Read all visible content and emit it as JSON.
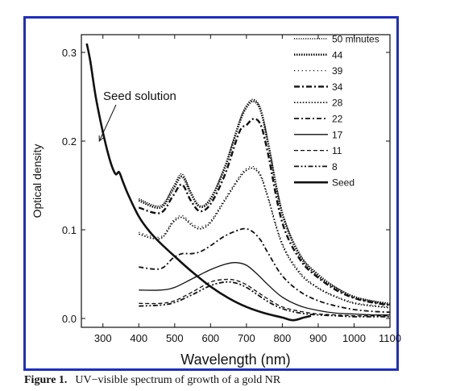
{
  "caption": {
    "label": "Figure 1.",
    "text": "UV−visible spectrum of growth of a gold NR"
  },
  "chart_data": {
    "type": "line",
    "xlabel": "Wavelength (nm)",
    "ylabel": "Optical density",
    "xlim": [
      240,
      1100
    ],
    "ylim": [
      -0.01,
      0.32
    ],
    "xticks": [
      300,
      400,
      500,
      600,
      700,
      800,
      900,
      1000,
      1100
    ],
    "yticks": [
      0.0,
      0.1,
      0.2,
      0.3
    ],
    "ytick_labels": [
      "0.0",
      "0.1",
      "0.2",
      "0.3"
    ],
    "legend_position": "top-right",
    "annotation": {
      "text": "Seed solution",
      "arrow_to": [
        290,
        0.2
      ]
    },
    "series": [
      {
        "name": "50 minutes",
        "style": "dot-fine",
        "x": [
          400,
          460,
          495,
          520,
          545,
          570,
          600,
          640,
          680,
          700,
          720,
          740,
          760,
          800,
          850,
          900,
          950,
          1000,
          1050,
          1100
        ],
        "y": [
          0.135,
          0.127,
          0.148,
          0.163,
          0.143,
          0.127,
          0.136,
          0.172,
          0.222,
          0.24,
          0.247,
          0.236,
          0.2,
          0.12,
          0.072,
          0.05,
          0.035,
          0.025,
          0.02,
          0.017
        ]
      },
      {
        "name": "44",
        "style": "dot-bold",
        "x": [
          400,
          460,
          495,
          520,
          545,
          570,
          600,
          640,
          680,
          700,
          720,
          740,
          760,
          800,
          850,
          900,
          950,
          1000,
          1050,
          1100
        ],
        "y": [
          0.133,
          0.125,
          0.145,
          0.16,
          0.141,
          0.126,
          0.134,
          0.17,
          0.22,
          0.238,
          0.245,
          0.234,
          0.198,
          0.118,
          0.07,
          0.048,
          0.034,
          0.024,
          0.019,
          0.016
        ]
      },
      {
        "name": "39",
        "style": "dot-sparse",
        "x": [
          400,
          460,
          495,
          520,
          545,
          570,
          600,
          640,
          680,
          700,
          720,
          740,
          760,
          800,
          850,
          900,
          950,
          1000,
          1050,
          1100
        ],
        "y": [
          0.097,
          0.092,
          0.11,
          0.116,
          0.108,
          0.103,
          0.11,
          0.135,
          0.16,
          0.169,
          0.171,
          0.162,
          0.138,
          0.085,
          0.052,
          0.035,
          0.025,
          0.018,
          0.015,
          0.013
        ]
      },
      {
        "name": "34",
        "style": "dash-dot-bold",
        "x": [
          400,
          460,
          495,
          520,
          545,
          570,
          600,
          640,
          680,
          700,
          720,
          740,
          760,
          800,
          850,
          900,
          950,
          1000,
          1050,
          1100
        ],
        "y": [
          0.125,
          0.119,
          0.138,
          0.151,
          0.133,
          0.121,
          0.129,
          0.162,
          0.21,
          0.218,
          0.225,
          0.218,
          0.186,
          0.108,
          0.066,
          0.046,
          0.032,
          0.023,
          0.018,
          0.015
        ]
      },
      {
        "name": "28",
        "style": "dot-medium",
        "x": [
          400,
          460,
          495,
          520,
          545,
          570,
          600,
          640,
          680,
          700,
          720,
          740,
          760,
          800,
          850,
          900,
          950,
          1000,
          1050,
          1100
        ],
        "y": [
          0.095,
          0.09,
          0.108,
          0.114,
          0.106,
          0.101,
          0.108,
          0.133,
          0.158,
          0.167,
          0.169,
          0.16,
          0.136,
          0.083,
          0.05,
          0.034,
          0.024,
          0.017,
          0.014,
          0.012
        ]
      },
      {
        "name": "22",
        "style": "dash-dot",
        "x": [
          400,
          460,
          495,
          520,
          545,
          570,
          600,
          640,
          680,
          700,
          720,
          740,
          760,
          800,
          850,
          900,
          950,
          1000,
          1050,
          1100
        ],
        "y": [
          0.058,
          0.056,
          0.068,
          0.073,
          0.073,
          0.075,
          0.082,
          0.093,
          0.1,
          0.101,
          0.097,
          0.088,
          0.074,
          0.048,
          0.03,
          0.02,
          0.014,
          0.01,
          0.008,
          0.007
        ]
      },
      {
        "name": "17",
        "style": "solid",
        "x": [
          400,
          460,
          500,
          550,
          600,
          640,
          670,
          700,
          730,
          760,
          800,
          850,
          900,
          950,
          1000,
          1050,
          1100
        ],
        "y": [
          0.032,
          0.032,
          0.035,
          0.045,
          0.055,
          0.061,
          0.063,
          0.06,
          0.05,
          0.038,
          0.024,
          0.014,
          0.009,
          0.006,
          0.005,
          0.004,
          0.004
        ]
      },
      {
        "name": "11",
        "style": "dash",
        "x": [
          400,
          460,
          500,
          550,
          600,
          640,
          670,
          700,
          730,
          760,
          800,
          850,
          900,
          950,
          1000,
          1050,
          1100
        ],
        "y": [
          0.017,
          0.017,
          0.02,
          0.03,
          0.041,
          0.044,
          0.043,
          0.038,
          0.03,
          0.022,
          0.013,
          0.008,
          0.005,
          0.004,
          0.003,
          0.003,
          0.003
        ]
      },
      {
        "name": "8",
        "style": "dash-dot-dot",
        "x": [
          400,
          460,
          500,
          550,
          600,
          640,
          670,
          700,
          730,
          760,
          800,
          850,
          900,
          950,
          1000,
          1050,
          1100
        ],
        "y": [
          0.014,
          0.015,
          0.018,
          0.027,
          0.037,
          0.041,
          0.04,
          0.035,
          0.027,
          0.019,
          0.011,
          0.006,
          0.004,
          0.003,
          0.002,
          0.002,
          0.002
        ]
      },
      {
        "name": "Seed",
        "style": "solid-bold",
        "x": [
          255,
          265,
          280,
          300,
          320,
          335,
          345,
          355,
          370,
          400,
          430,
          460,
          500,
          550,
          600,
          650,
          700,
          750,
          800,
          830,
          860,
          880
        ],
        "y": [
          0.31,
          0.29,
          0.25,
          0.21,
          0.178,
          0.163,
          0.165,
          0.155,
          0.14,
          0.115,
          0.098,
          0.085,
          0.07,
          0.052,
          0.036,
          0.023,
          0.013,
          0.006,
          0.001,
          -0.002,
          0.001,
          0.003
        ]
      }
    ]
  }
}
